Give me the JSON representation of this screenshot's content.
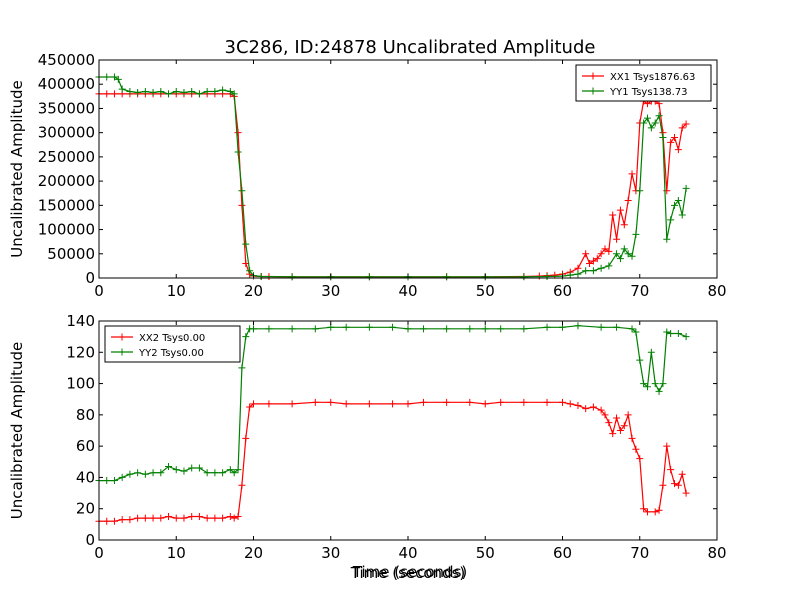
{
  "figure": {
    "title": "3C286, ID:24878 Uncalibrated Amplitude",
    "xlabel": "Time (seconds)"
  },
  "chart_data": [
    {
      "type": "line",
      "title": "3C286, ID:24878 Uncalibrated Amplitude",
      "xlabel": "",
      "ylabel": "Uncalibrated Amplitude",
      "xlim": [
        0,
        80
      ],
      "ylim": [
        0,
        450000
      ],
      "xticks": [
        0,
        10,
        20,
        30,
        40,
        50,
        60,
        70,
        80
      ],
      "yticks": [
        0,
        50000,
        100000,
        150000,
        200000,
        250000,
        300000,
        350000,
        400000,
        450000
      ],
      "legend_position": "top-right",
      "grid": false,
      "series": [
        {
          "name": "XX1 Tsys1876.63",
          "color": "#ff0000",
          "marker": "+",
          "points": [
            [
              0,
              380000
            ],
            [
              1,
              380000
            ],
            [
              2,
              380000
            ],
            [
              3,
              380000
            ],
            [
              4,
              380000
            ],
            [
              5,
              380000
            ],
            [
              6,
              380000
            ],
            [
              7,
              380000
            ],
            [
              8,
              380000
            ],
            [
              9,
              380000
            ],
            [
              10,
              380000
            ],
            [
              11,
              380000
            ],
            [
              12,
              380000
            ],
            [
              13,
              380000
            ],
            [
              14,
              380000
            ],
            [
              15,
              380000
            ],
            [
              16,
              380000
            ],
            [
              17,
              380000
            ],
            [
              17.5,
              375000
            ],
            [
              18,
              300000
            ],
            [
              18.5,
              150000
            ],
            [
              19,
              30000
            ],
            [
              19.5,
              8000
            ],
            [
              20,
              4000
            ],
            [
              21,
              3000
            ],
            [
              22,
              3000
            ],
            [
              25,
              2500
            ],
            [
              30,
              2500
            ],
            [
              35,
              2500
            ],
            [
              40,
              2500
            ],
            [
              45,
              2500
            ],
            [
              50,
              2500
            ],
            [
              55,
              3000
            ],
            [
              57,
              4000
            ],
            [
              58,
              5000
            ],
            [
              59,
              6000
            ],
            [
              60,
              8000
            ],
            [
              61,
              12000
            ],
            [
              62,
              20000
            ],
            [
              63,
              50000
            ],
            [
              63.5,
              30000
            ],
            [
              64,
              35000
            ],
            [
              64.5,
              40000
            ],
            [
              65,
              50000
            ],
            [
              65.5,
              60000
            ],
            [
              66,
              55000
            ],
            [
              66.5,
              130000
            ],
            [
              67,
              80000
            ],
            [
              67.5,
              140000
            ],
            [
              68,
              110000
            ],
            [
              68.5,
              160000
            ],
            [
              69,
              215000
            ],
            [
              69.5,
              180000
            ],
            [
              70,
              320000
            ],
            [
              70.5,
              365000
            ],
            [
              71,
              360000
            ],
            [
              71.5,
              365000
            ],
            [
              72,
              365000
            ],
            [
              72.5,
              360000
            ],
            [
              73,
              300000
            ],
            [
              73.5,
              180000
            ],
            [
              74,
              280000
            ],
            [
              74.5,
              290000
            ],
            [
              75,
              265000
            ],
            [
              75.5,
              310000
            ],
            [
              76,
              318000
            ]
          ]
        },
        {
          "name": "YY1 Tsys138.73",
          "color": "#008000",
          "marker": "+",
          "points": [
            [
              0,
              415000
            ],
            [
              1,
              415000
            ],
            [
              2,
              415000
            ],
            [
              2.5,
              410000
            ],
            [
              3,
              390000
            ],
            [
              4,
              385000
            ],
            [
              5,
              383000
            ],
            [
              6,
              385000
            ],
            [
              7,
              383000
            ],
            [
              8,
              385000
            ],
            [
              9,
              380000
            ],
            [
              10,
              385000
            ],
            [
              11,
              383000
            ],
            [
              12,
              385000
            ],
            [
              13,
              380000
            ],
            [
              14,
              385000
            ],
            [
              15,
              385000
            ],
            [
              16,
              388000
            ],
            [
              17,
              385000
            ],
            [
              17.5,
              380000
            ],
            [
              18,
              260000
            ],
            [
              18.5,
              180000
            ],
            [
              19,
              70000
            ],
            [
              19.5,
              15000
            ],
            [
              20,
              5000
            ],
            [
              21,
              3000
            ],
            [
              25,
              2500
            ],
            [
              30,
              2500
            ],
            [
              35,
              2500
            ],
            [
              40,
              2500
            ],
            [
              45,
              2500
            ],
            [
              50,
              2500
            ],
            [
              55,
              2500
            ],
            [
              58,
              3000
            ],
            [
              60,
              4000
            ],
            [
              61,
              6000
            ],
            [
              62,
              8000
            ],
            [
              63,
              15000
            ],
            [
              64,
              15000
            ],
            [
              65,
              20000
            ],
            [
              66,
              25000
            ],
            [
              67,
              50000
            ],
            [
              67.5,
              40000
            ],
            [
              68,
              60000
            ],
            [
              68.5,
              50000
            ],
            [
              69,
              45000
            ],
            [
              69.5,
              90000
            ],
            [
              70,
              180000
            ],
            [
              70.5,
              320000
            ],
            [
              71,
              330000
            ],
            [
              71.5,
              310000
            ],
            [
              72,
              320000
            ],
            [
              72.5,
              335000
            ],
            [
              73,
              290000
            ],
            [
              73.5,
              80000
            ],
            [
              74,
              120000
            ],
            [
              74.5,
              150000
            ],
            [
              75,
              160000
            ],
            [
              75.5,
              130000
            ],
            [
              76,
              185000
            ]
          ]
        }
      ]
    },
    {
      "type": "line",
      "title": "",
      "xlabel": "Time (seconds)",
      "ylabel": "Uncalibrated Amplitude",
      "xlim": [
        0,
        80
      ],
      "ylim": [
        0,
        140
      ],
      "xticks": [
        0,
        10,
        20,
        30,
        40,
        50,
        60,
        70,
        80
      ],
      "yticks": [
        0,
        20,
        40,
        60,
        80,
        100,
        120,
        140
      ],
      "legend_position": "top-left",
      "grid": false,
      "series": [
        {
          "name": "XX2 Tsys0.00",
          "color": "#ff0000",
          "marker": "+",
          "points": [
            [
              0,
              12
            ],
            [
              1,
              12
            ],
            [
              2,
              12
            ],
            [
              3,
              13
            ],
            [
              4,
              13
            ],
            [
              5,
              14
            ],
            [
              6,
              14
            ],
            [
              7,
              14
            ],
            [
              8,
              14
            ],
            [
              9,
              15
            ],
            [
              10,
              14
            ],
            [
              11,
              14
            ],
            [
              12,
              15
            ],
            [
              13,
              15
            ],
            [
              14,
              14
            ],
            [
              15,
              14
            ],
            [
              16,
              14
            ],
            [
              17,
              15
            ],
            [
              17.5,
              14
            ],
            [
              18,
              15
            ],
            [
              18.5,
              35
            ],
            [
              19,
              65
            ],
            [
              19.5,
              85
            ],
            [
              20,
              87
            ],
            [
              22,
              87
            ],
            [
              25,
              87
            ],
            [
              28,
              88
            ],
            [
              30,
              88
            ],
            [
              32,
              87
            ],
            [
              35,
              87
            ],
            [
              38,
              87
            ],
            [
              40,
              87
            ],
            [
              42,
              88
            ],
            [
              45,
              88
            ],
            [
              48,
              88
            ],
            [
              50,
              87
            ],
            [
              52,
              88
            ],
            [
              55,
              88
            ],
            [
              58,
              88
            ],
            [
              60,
              88
            ],
            [
              61,
              87
            ],
            [
              62,
              86
            ],
            [
              63,
              84
            ],
            [
              64,
              85
            ],
            [
              65,
              83
            ],
            [
              65.5,
              80
            ],
            [
              66,
              75
            ],
            [
              66.5,
              68
            ],
            [
              67,
              78
            ],
            [
              67.5,
              70
            ],
            [
              68,
              73
            ],
            [
              68.5,
              80
            ],
            [
              69,
              65
            ],
            [
              69.5,
              58
            ],
            [
              70,
              52
            ],
            [
              70.5,
              20
            ],
            [
              71,
              18
            ],
            [
              72,
              18
            ],
            [
              72.5,
              19
            ],
            [
              73,
              35
            ],
            [
              73.5,
              60
            ],
            [
              74,
              45
            ],
            [
              74.5,
              36
            ],
            [
              75,
              35
            ],
            [
              75.5,
              42
            ],
            [
              76,
              30
            ]
          ]
        },
        {
          "name": "YY2 Tsys0.00",
          "color": "#008000",
          "marker": "+",
          "points": [
            [
              0,
              38
            ],
            [
              1,
              38
            ],
            [
              2,
              38
            ],
            [
              3,
              40
            ],
            [
              4,
              42
            ],
            [
              5,
              43
            ],
            [
              6,
              42
            ],
            [
              7,
              43
            ],
            [
              8,
              43
            ],
            [
              9,
              47
            ],
            [
              10,
              45
            ],
            [
              11,
              44
            ],
            [
              12,
              46
            ],
            [
              13,
              46
            ],
            [
              14,
              43
            ],
            [
              15,
              43
            ],
            [
              16,
              43
            ],
            [
              17,
              45
            ],
            [
              17.5,
              43
            ],
            [
              18,
              45
            ],
            [
              18.5,
              110
            ],
            [
              19,
              130
            ],
            [
              19.5,
              135
            ],
            [
              20,
              135
            ],
            [
              22,
              135
            ],
            [
              25,
              135
            ],
            [
              28,
              135
            ],
            [
              30,
              136
            ],
            [
              32,
              136
            ],
            [
              35,
              136
            ],
            [
              38,
              136
            ],
            [
              40,
              135
            ],
            [
              42,
              135
            ],
            [
              45,
              135
            ],
            [
              48,
              135
            ],
            [
              50,
              135
            ],
            [
              52,
              135
            ],
            [
              55,
              135
            ],
            [
              58,
              136
            ],
            [
              60,
              136
            ],
            [
              62,
              137
            ],
            [
              65,
              136
            ],
            [
              67,
              136
            ],
            [
              69,
              135
            ],
            [
              69.5,
              133
            ],
            [
              70,
              115
            ],
            [
              70.5,
              100
            ],
            [
              71,
              98
            ],
            [
              71.5,
              120
            ],
            [
              72,
              100
            ],
            [
              72.5,
              95
            ],
            [
              73,
              100
            ],
            [
              73.5,
              133
            ],
            [
              74,
              132
            ],
            [
              75,
              132
            ],
            [
              76,
              130
            ]
          ]
        }
      ]
    }
  ]
}
